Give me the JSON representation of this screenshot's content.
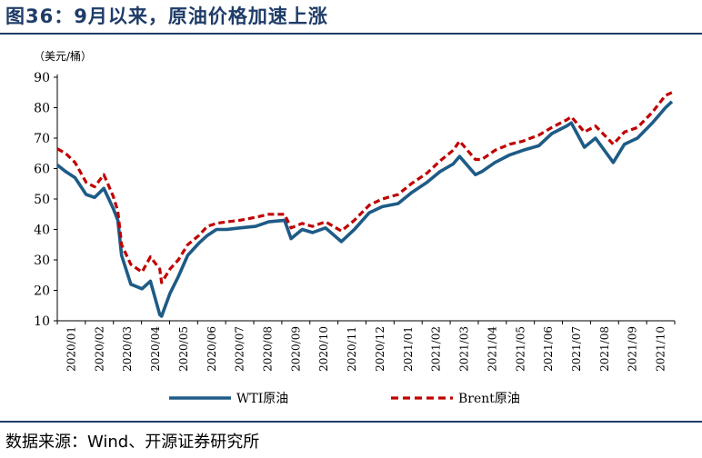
{
  "figure": {
    "title": "图36：9月以来，原油价格加速上涨",
    "source": "数据来源：Wind、开源证券研究所"
  },
  "chart_data": {
    "type": "line",
    "unit_label": "（美元/桶）",
    "ylim": [
      10,
      90
    ],
    "yticks": [
      "90",
      "80",
      "70",
      "60",
      "50",
      "40",
      "30",
      "20",
      "10"
    ],
    "x_ticks": [
      "2020/01",
      "2020/02",
      "2020/03",
      "2020/04",
      "2020/05",
      "2020/06",
      "2020/07",
      "2020/08",
      "2020/09",
      "2020/10",
      "2020/11",
      "2020/12",
      "2021/01",
      "2021/02",
      "2021/03",
      "2021/04",
      "2021/05",
      "2021/06",
      "2021/07",
      "2021/08",
      "2021/09",
      "2021/10"
    ],
    "grid": false,
    "legend_position": "bottom",
    "x": [
      "2020-01-01",
      "2020-01-10",
      "2020-01-20",
      "2020-02-01",
      "2020-02-10",
      "2020-02-20",
      "2020-03-01",
      "2020-03-06",
      "2020-03-10",
      "2020-03-20",
      "2020-04-01",
      "2020-04-10",
      "2020-04-20",
      "2020-04-22",
      "2020-05-01",
      "2020-05-10",
      "2020-05-20",
      "2020-06-01",
      "2020-06-10",
      "2020-06-20",
      "2020-07-01",
      "2020-07-15",
      "2020-08-01",
      "2020-08-15",
      "2020-09-01",
      "2020-09-08",
      "2020-09-20",
      "2020-10-01",
      "2020-10-15",
      "2020-11-01",
      "2020-11-15",
      "2020-12-01",
      "2020-12-15",
      "2021-01-01",
      "2021-01-15",
      "2021-02-01",
      "2021-02-15",
      "2021-03-01",
      "2021-03-08",
      "2021-03-25",
      "2021-04-01",
      "2021-04-15",
      "2021-05-01",
      "2021-05-15",
      "2021-06-01",
      "2021-06-15",
      "2021-07-01",
      "2021-07-06",
      "2021-07-20",
      "2021-08-01",
      "2021-08-20",
      "2021-09-01",
      "2021-09-15",
      "2021-10-01",
      "2021-10-15",
      "2021-10-22"
    ],
    "series": [
      {
        "name": "WTI原油",
        "color": "#1e5b86",
        "style": "solid",
        "values": [
          61.2,
          59,
          57,
          51.5,
          50.5,
          53.5,
          47,
          43,
          31.5,
          22,
          20.5,
          23,
          12,
          11.5,
          19,
          24.5,
          31.5,
          35.5,
          38,
          40,
          40,
          40.5,
          41,
          42.5,
          43,
          37,
          40,
          39,
          40.5,
          36,
          40,
          45.5,
          47.5,
          48.5,
          52,
          55.5,
          59,
          61.5,
          64,
          58,
          59,
          62,
          64.5,
          66,
          67.5,
          71.5,
          74,
          75,
          67,
          70,
          62,
          68,
          70,
          75,
          80,
          82
        ]
      },
      {
        "name": "Brent原油",
        "color": "#c00000",
        "style": "dashed",
        "values": [
          66.5,
          65,
          62,
          55.5,
          54,
          58,
          51,
          46,
          35,
          28.5,
          26,
          31,
          27,
          22.5,
          27,
          30,
          35,
          38,
          41,
          42,
          42.5,
          43,
          44,
          45,
          45,
          40.5,
          42,
          41,
          42.5,
          39.5,
          43,
          48,
          50,
          51.5,
          55,
          58.5,
          62.5,
          66,
          69,
          63,
          63,
          66,
          68,
          69,
          71,
          73.5,
          76,
          77,
          72,
          74,
          68,
          72,
          73.5,
          78.5,
          84,
          85
        ]
      }
    ]
  }
}
